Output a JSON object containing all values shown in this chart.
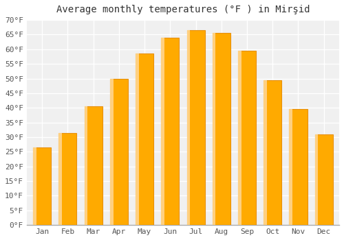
{
  "title": "Average monthly temperatures (°F ) in Mirşid",
  "months": [
    "Jan",
    "Feb",
    "Mar",
    "Apr",
    "May",
    "Jun",
    "Jul",
    "Aug",
    "Sep",
    "Oct",
    "Nov",
    "Dec"
  ],
  "values": [
    26.5,
    31.5,
    40.5,
    50.0,
    58.5,
    64.0,
    66.5,
    65.5,
    59.5,
    49.5,
    39.5,
    31.0
  ],
  "bar_color_face": "#FFAA00",
  "bar_color_edge": "#E8900A",
  "bar_color_left": "#FFD080",
  "ylim": [
    0,
    70
  ],
  "yticks": [
    0,
    5,
    10,
    15,
    20,
    25,
    30,
    35,
    40,
    45,
    50,
    55,
    60,
    65,
    70
  ],
  "ytick_labels": [
    "0°F",
    "5°F",
    "10°F",
    "15°F",
    "20°F",
    "25°F",
    "30°F",
    "35°F",
    "40°F",
    "45°F",
    "50°F",
    "55°F",
    "60°F",
    "65°F",
    "70°F"
  ],
  "background_color": "#ffffff",
  "plot_bg_color": "#f0f0f0",
  "grid_color": "#ffffff",
  "title_fontsize": 10,
  "tick_fontsize": 8,
  "bar_width": 0.7
}
